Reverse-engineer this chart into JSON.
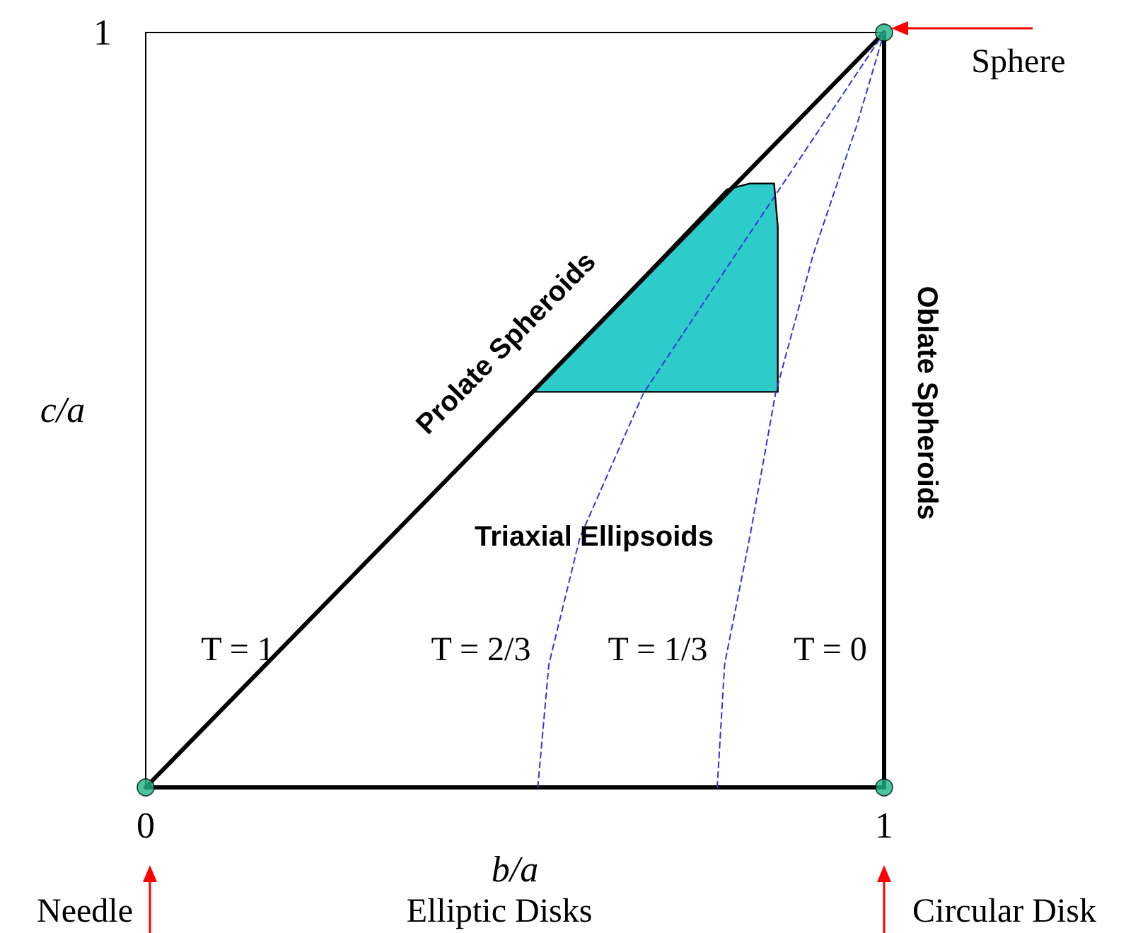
{
  "chart_data": {
    "type": "line",
    "xlabel": "b/a",
    "ylabel": "c/a",
    "xlim": [
      0,
      1
    ],
    "xticks": [
      0,
      1
    ],
    "ylim": [
      0,
      1
    ],
    "yticks": [
      1
    ],
    "grid": false,
    "marker": "none",
    "series": [
      {
        "type": "area",
        "color": "#2ecbcb",
        "x": [
          0.525,
          0.787,
          0.818,
          0.851,
          0.856,
          0.856
        ],
        "values": [
          0.524,
          0.792,
          0.8,
          0.8,
          0.743,
          0.524
        ]
      },
      {
        "color": "#000000",
        "x": [
          0,
          1
        ],
        "values": [
          0,
          1
        ],
        "line_style": "solid"
      },
      {
        "color": "#000000",
        "x": [
          1,
          1
        ],
        "values": [
          0,
          1
        ],
        "line_style": "solid"
      },
      {
        "color": "#000000",
        "x": [
          0,
          1
        ],
        "values": [
          0,
          0
        ],
        "line_style": "solid"
      },
      {
        "color": "#3333dd",
        "x": [
          0.531,
          0.546,
          0.588,
          0.674,
          0.799,
          0.914,
          1
        ],
        "values": [
          0,
          0.163,
          0.331,
          0.522,
          0.706,
          0.874,
          1
        ],
        "line_style": "dashed"
      },
      {
        "color": "#3333dd",
        "x": [
          0.774,
          0.784,
          0.818,
          0.853,
          0.904,
          0.962,
          1
        ],
        "values": [
          0,
          0.163,
          0.331,
          0.522,
          0.706,
          0.874,
          1
        ],
        "line_style": "dashed"
      },
      {
        "type": "scatter",
        "color": "#1db384",
        "x": [
          0,
          1,
          1
        ],
        "values": [
          0,
          0,
          1
        ],
        "marker": "circle"
      }
    ],
    "annotations": [
      "Sphere",
      "Needle",
      "Circular Disk",
      "Elliptic Disks",
      "Prolate Spheroids",
      "Oblate Spheroids",
      "Triaxial Ellipsoids",
      "T = 1",
      "T = 2/3",
      "T = 1/3",
      "T = 0"
    ]
  }
}
